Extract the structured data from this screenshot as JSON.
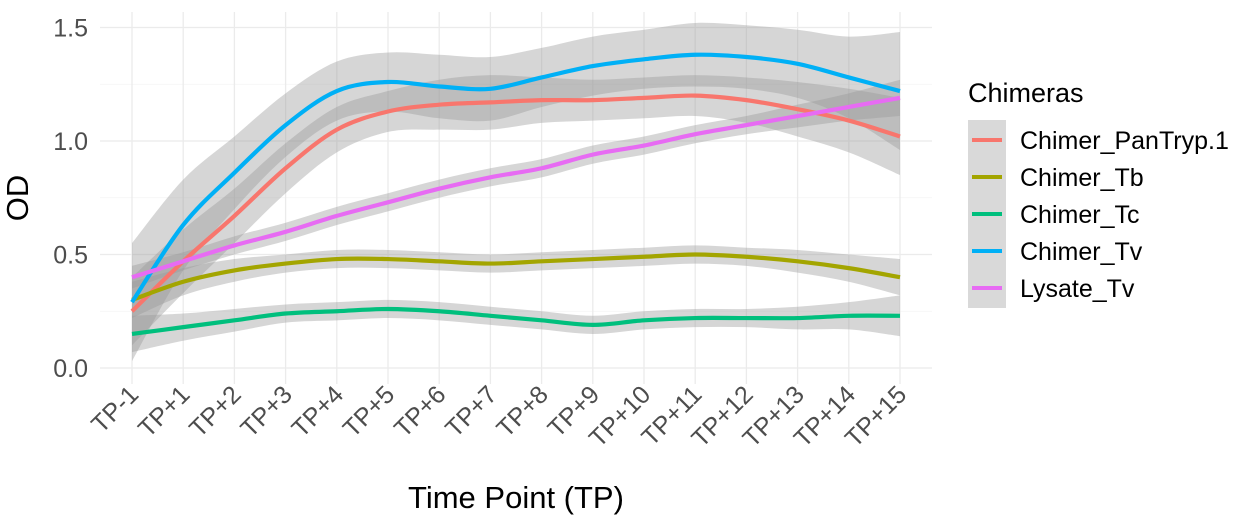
{
  "chart_data": {
    "type": "line",
    "title": "",
    "xlabel": "Time Point (TP)",
    "ylabel": "OD",
    "ylim": [
      0.0,
      1.55
    ],
    "yticks": [
      0.0,
      0.5,
      1.0,
      1.5
    ],
    "ytick_labels": [
      "0.0",
      "0.5",
      "1.0",
      "1.5"
    ],
    "grid": true,
    "legend_position": "right",
    "legend_title": "Chimeras",
    "smoothing": "loess with grey confidence bands",
    "categories": [
      "TP-1",
      "TP+1",
      "TP+2",
      "TP+3",
      "TP+4",
      "TP+5",
      "TP+6",
      "TP+7",
      "TP+8",
      "TP+9",
      "TP+10",
      "TP+11",
      "TP+12",
      "TP+13",
      "TP+14",
      "TP+15"
    ],
    "series": [
      {
        "name": "Chimer_PanTryp.1",
        "color": "#F8766D",
        "values": [
          0.25,
          0.47,
          0.67,
          0.88,
          1.05,
          1.13,
          1.16,
          1.17,
          1.18,
          1.18,
          1.19,
          1.2,
          1.18,
          1.14,
          1.09,
          1.02
        ],
        "band": [
          0.15,
          0.14,
          0.12,
          0.11,
          0.1,
          0.09,
          0.11,
          0.12,
          0.1,
          0.09,
          0.09,
          0.09,
          0.1,
          0.12,
          0.14,
          0.17
        ]
      },
      {
        "name": "Chimer_Tb",
        "color": "#A3A500",
        "values": [
          0.3,
          0.38,
          0.43,
          0.46,
          0.48,
          0.48,
          0.47,
          0.46,
          0.47,
          0.48,
          0.49,
          0.5,
          0.49,
          0.47,
          0.44,
          0.4
        ],
        "band": [
          0.08,
          0.06,
          0.05,
          0.04,
          0.04,
          0.04,
          0.04,
          0.04,
          0.04,
          0.04,
          0.04,
          0.04,
          0.04,
          0.05,
          0.06,
          0.08
        ]
      },
      {
        "name": "Chimer_Tc",
        "color": "#00BF7D",
        "values": [
          0.15,
          0.18,
          0.21,
          0.24,
          0.25,
          0.26,
          0.25,
          0.23,
          0.21,
          0.19,
          0.21,
          0.22,
          0.22,
          0.22,
          0.23,
          0.23
        ],
        "band": [
          0.08,
          0.06,
          0.05,
          0.04,
          0.04,
          0.04,
          0.04,
          0.04,
          0.04,
          0.04,
          0.04,
          0.04,
          0.04,
          0.05,
          0.06,
          0.09
        ]
      },
      {
        "name": "Chimer_Tv",
        "color": "#00B0F6",
        "values": [
          0.29,
          0.63,
          0.86,
          1.07,
          1.22,
          1.26,
          1.24,
          1.23,
          1.28,
          1.33,
          1.36,
          1.38,
          1.37,
          1.34,
          1.28,
          1.22
        ],
        "band": [
          0.26,
          0.2,
          0.16,
          0.14,
          0.13,
          0.13,
          0.14,
          0.14,
          0.13,
          0.13,
          0.13,
          0.14,
          0.14,
          0.15,
          0.18,
          0.26
        ]
      },
      {
        "name": "Lysate_Tv",
        "color": "#E76BF3",
        "values": [
          0.4,
          0.47,
          0.54,
          0.6,
          0.67,
          0.73,
          0.79,
          0.84,
          0.88,
          0.94,
          0.98,
          1.03,
          1.07,
          1.11,
          1.15,
          1.19
        ],
        "band": [
          0.05,
          0.04,
          0.04,
          0.04,
          0.04,
          0.04,
          0.04,
          0.04,
          0.04,
          0.04,
          0.04,
          0.04,
          0.04,
          0.05,
          0.06,
          0.08
        ]
      }
    ]
  },
  "legend": {
    "title": "Chimeras",
    "items": [
      {
        "label": "Chimer_PanTryp.1",
        "color": "#F8766D"
      },
      {
        "label": "Chimer_Tb",
        "color": "#A3A500"
      },
      {
        "label": "Chimer_Tc",
        "color": "#00BF7D"
      },
      {
        "label": "Chimer_Tv",
        "color": "#00B0F6"
      },
      {
        "label": "Lysate_Tv",
        "color": "#E76BF3"
      }
    ]
  },
  "axes": {
    "x_title": "Time Point (TP)",
    "y_title": "OD"
  },
  "colors": {
    "band_fill": "#999999",
    "grid": "#ebebeb",
    "tick_text": "#4d4d4d"
  }
}
